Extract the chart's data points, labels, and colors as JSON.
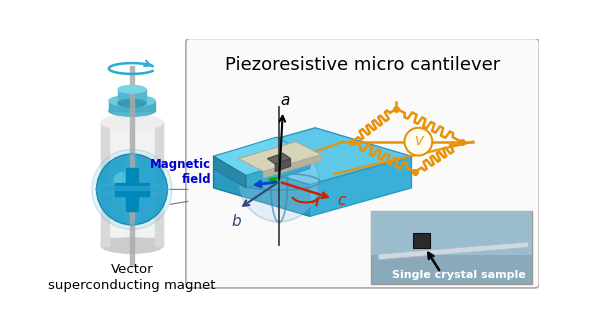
{
  "title": "Piezoresistive micro cantilever",
  "label_vector": "Vector\nsuperconducting magnet",
  "label_single_crystal": "Single crystal sample",
  "label_magnetic_field": "Magnetic\nfield",
  "label_a": "a",
  "label_b": "b",
  "label_c": "c",
  "color_blue": "#29ABD4",
  "color_blue_light": "#7FD0E8",
  "color_orange": "#E8920A",
  "color_gray_body": "#E8E8E8",
  "color_dark_gray": "#888888",
  "color_white": "#FFFFFF",
  "color_black": "#000000",
  "color_green": "#00AA00",
  "color_red": "#CC0000",
  "color_navy": "#0000CC",
  "fig_width": 6.0,
  "fig_height": 3.27,
  "bg_color": "#FFFFFF"
}
